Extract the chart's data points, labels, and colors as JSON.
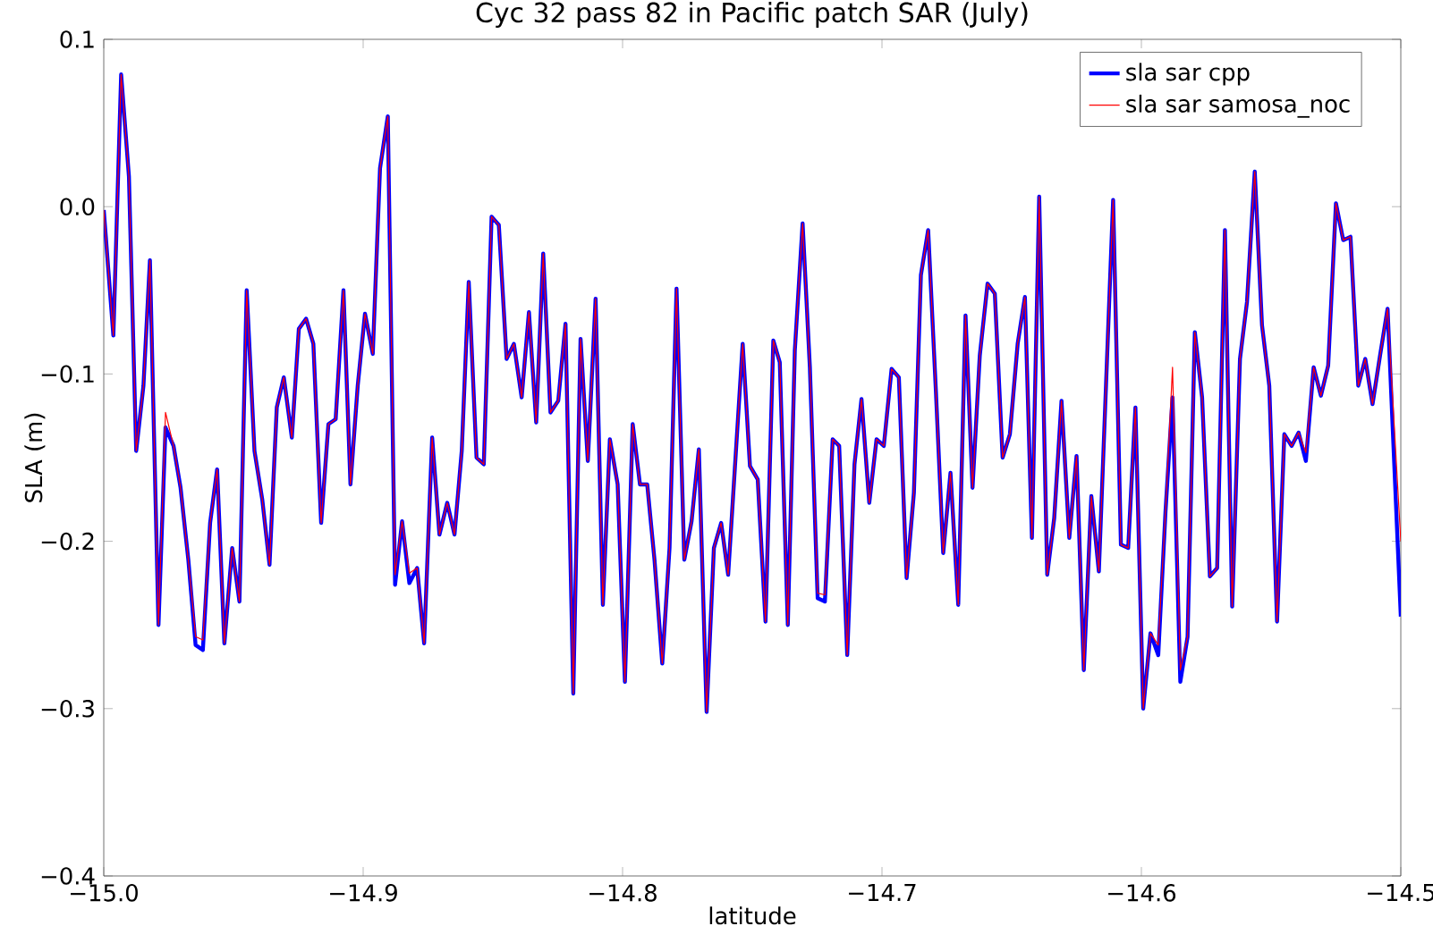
{
  "chart_data": {
    "type": "line",
    "title": "Cyc 32 pass 82 in Pacific patch SAR (July)",
    "xlabel": "latitude",
    "ylabel": "SLA (m)",
    "x": [
      -15.0,
      -14.9963,
      -14.9933,
      -14.9903,
      -14.9875,
      -14.9847,
      -14.9822,
      -14.9789,
      -14.9762,
      -14.9731,
      -14.9704,
      -14.9674,
      -14.9646,
      -14.9618,
      -14.959,
      -14.9563,
      -14.9535,
      -14.9505,
      -14.9477,
      -14.9449,
      -14.9419,
      -14.9389,
      -14.9361,
      -14.9333,
      -14.9306,
      -14.9275,
      -14.9248,
      -14.922,
      -14.9192,
      -14.9162,
      -14.9134,
      -14.9106,
      -14.9076,
      -14.9049,
      -14.9021,
      -14.8993,
      -14.8963,
      -14.8935,
      -14.8905,
      -14.8877,
      -14.885,
      -14.8822,
      -14.8792,
      -14.8765,
      -14.8734,
      -14.8706,
      -14.8676,
      -14.8648,
      -14.862,
      -14.8593,
      -14.8563,
      -14.8535,
      -14.8505,
      -14.8477,
      -14.8447,
      -14.8419,
      -14.8389,
      -14.8361,
      -14.8333,
      -14.8306,
      -14.8278,
      -14.8248,
      -14.822,
      -14.819,
      -14.8162,
      -14.8134,
      -14.8104,
      -14.8076,
      -14.8049,
      -14.8019,
      -14.7991,
      -14.7961,
      -14.7933,
      -14.7905,
      -14.7877,
      -14.7847,
      -14.7819,
      -14.7792,
      -14.7762,
      -14.7734,
      -14.7706,
      -14.7676,
      -14.7648,
      -14.762,
      -14.7593,
      -14.7537,
      -14.7509,
      -14.7479,
      -14.7449,
      -14.7419,
      -14.7394,
      -14.7363,
      -14.7336,
      -14.7306,
      -14.7278,
      -14.7248,
      -14.722,
      -14.719,
      -14.7165,
      -14.7134,
      -14.7106,
      -14.7079,
      -14.7049,
      -14.7021,
      -14.6993,
      -14.6963,
      -14.6935,
      -14.6905,
      -14.6877,
      -14.685,
      -14.6822,
      -14.6792,
      -14.6764,
      -14.6736,
      -14.6706,
      -14.6678,
      -14.6651,
      -14.6623,
      -14.6593,
      -14.6565,
      -14.6535,
      -14.6507,
      -14.6477,
      -14.6449,
      -14.6422,
      -14.6394,
      -14.6363,
      -14.6336,
      -14.6308,
      -14.6278,
      -14.625,
      -14.6222,
      -14.6193,
      -14.6164,
      -14.6109,
      -14.6079,
      -14.6051,
      -14.6023,
      -14.5993,
      -14.5965,
      -14.5935,
      -14.5907,
      -14.588,
      -14.585,
      -14.5822,
      -14.5794,
      -14.5766,
      -14.5736,
      -14.5708,
      -14.5678,
      -14.565,
      -14.562,
      -14.5593,
      -14.5563,
      -14.5535,
      -14.5507,
      -14.5477,
      -14.5449,
      -14.5421,
      -14.5394,
      -14.5366,
      -14.5336,
      -14.5308,
      -14.528,
      -14.525,
      -14.5222,
      -14.5194,
      -14.5164,
      -14.5137,
      -14.5109,
      -14.5079,
      -14.5051,
      -14.5
    ],
    "series": [
      {
        "name": "sla sar cpp",
        "color": "#0000ff",
        "values": [
          -0.002,
          -0.077,
          0.079,
          0.018,
          -0.146,
          -0.107,
          -0.032,
          -0.25,
          -0.132,
          -0.143,
          -0.168,
          -0.211,
          -0.262,
          -0.265,
          -0.189,
          -0.157,
          -0.261,
          -0.204,
          -0.236,
          -0.05,
          -0.146,
          -0.175,
          -0.214,
          -0.12,
          -0.102,
          -0.138,
          -0.073,
          -0.067,
          -0.082,
          -0.189,
          -0.13,
          -0.127,
          -0.05,
          -0.166,
          -0.107,
          -0.064,
          -0.088,
          0.023,
          0.054,
          -0.226,
          -0.188,
          -0.225,
          -0.216,
          -0.261,
          -0.138,
          -0.196,
          -0.177,
          -0.196,
          -0.146,
          -0.045,
          -0.15,
          -0.154,
          -0.006,
          -0.011,
          -0.091,
          -0.082,
          -0.114,
          -0.063,
          -0.129,
          -0.028,
          -0.123,
          -0.116,
          -0.07,
          -0.291,
          -0.079,
          -0.152,
          -0.055,
          -0.238,
          -0.139,
          -0.166,
          -0.284,
          -0.13,
          -0.166,
          -0.166,
          -0.211,
          -0.273,
          -0.204,
          -0.049,
          -0.211,
          -0.188,
          -0.145,
          -0.302,
          -0.204,
          -0.189,
          -0.22,
          -0.082,
          -0.155,
          -0.163,
          -0.248,
          -0.08,
          -0.093,
          -0.25,
          -0.086,
          -0.01,
          -0.096,
          -0.234,
          -0.236,
          -0.139,
          -0.143,
          -0.268,
          -0.154,
          -0.115,
          -0.177,
          -0.139,
          -0.143,
          -0.097,
          -0.102,
          -0.222,
          -0.171,
          -0.041,
          -0.014,
          -0.111,
          -0.207,
          -0.159,
          -0.238,
          -0.065,
          -0.168,
          -0.089,
          -0.046,
          -0.052,
          -0.15,
          -0.136,
          -0.082,
          -0.054,
          -0.198,
          0.006,
          -0.22,
          -0.186,
          -0.116,
          -0.198,
          -0.149,
          -0.277,
          -0.173,
          -0.218,
          0.004,
          -0.202,
          -0.204,
          -0.12,
          -0.3,
          -0.255,
          -0.268,
          -0.182,
          -0.114,
          -0.284,
          -0.257,
          -0.075,
          -0.114,
          -0.221,
          -0.216,
          -0.014,
          -0.239,
          -0.091,
          -0.057,
          0.021,
          -0.071,
          -0.107,
          -0.248,
          -0.136,
          -0.143,
          -0.135,
          -0.152,
          -0.096,
          -0.113,
          -0.095,
          0.002,
          -0.02,
          -0.018,
          -0.107,
          -0.091,
          -0.118,
          -0.088,
          -0.061,
          -0.245
        ]
      },
      {
        "name": "sla sar samosa_noc",
        "color": "#ff0000",
        "values": [
          -0.002,
          -0.077,
          0.079,
          0.018,
          -0.146,
          -0.107,
          -0.032,
          -0.25,
          -0.123,
          -0.143,
          -0.168,
          -0.211,
          -0.257,
          -0.259,
          -0.189,
          -0.157,
          -0.261,
          -0.204,
          -0.236,
          -0.05,
          -0.146,
          -0.175,
          -0.214,
          -0.12,
          -0.102,
          -0.138,
          -0.073,
          -0.067,
          -0.082,
          -0.189,
          -0.13,
          -0.127,
          -0.05,
          -0.166,
          -0.107,
          -0.064,
          -0.088,
          0.023,
          0.054,
          -0.22,
          -0.188,
          -0.219,
          -0.216,
          -0.261,
          -0.138,
          -0.196,
          -0.177,
          -0.196,
          -0.146,
          -0.045,
          -0.15,
          -0.154,
          -0.006,
          -0.011,
          -0.091,
          -0.082,
          -0.114,
          -0.063,
          -0.129,
          -0.028,
          -0.123,
          -0.116,
          -0.07,
          -0.291,
          -0.079,
          -0.152,
          -0.055,
          -0.238,
          -0.139,
          -0.166,
          -0.284,
          -0.13,
          -0.166,
          -0.166,
          -0.211,
          -0.273,
          -0.204,
          -0.049,
          -0.211,
          -0.188,
          -0.145,
          -0.302,
          -0.204,
          -0.189,
          -0.22,
          -0.082,
          -0.155,
          -0.163,
          -0.248,
          -0.08,
          -0.093,
          -0.25,
          -0.086,
          -0.01,
          -0.096,
          -0.231,
          -0.232,
          -0.139,
          -0.143,
          -0.268,
          -0.154,
          -0.115,
          -0.177,
          -0.139,
          -0.143,
          -0.097,
          -0.102,
          -0.222,
          -0.171,
          -0.041,
          -0.014,
          -0.111,
          -0.207,
          -0.159,
          -0.238,
          -0.065,
          -0.168,
          -0.089,
          -0.046,
          -0.052,
          -0.15,
          -0.136,
          -0.082,
          -0.054,
          -0.198,
          0.006,
          -0.22,
          -0.186,
          -0.116,
          -0.198,
          -0.149,
          -0.277,
          -0.173,
          -0.218,
          0.004,
          -0.202,
          -0.204,
          -0.12,
          -0.3,
          -0.255,
          -0.262,
          -0.182,
          -0.096,
          -0.277,
          -0.257,
          -0.075,
          -0.114,
          -0.221,
          -0.216,
          -0.014,
          -0.239,
          -0.091,
          -0.057,
          0.021,
          -0.071,
          -0.107,
          -0.248,
          -0.136,
          -0.143,
          -0.135,
          -0.147,
          -0.096,
          -0.113,
          -0.095,
          0.002,
          -0.02,
          -0.018,
          -0.107,
          -0.091,
          -0.118,
          -0.088,
          -0.061,
          -0.2
        ]
      }
    ],
    "xlim": [
      -15.0,
      -14.5
    ],
    "xticks": [
      {
        "value": -15.0,
        "label": "−15.0"
      },
      {
        "value": -14.9,
        "label": "−14.9"
      },
      {
        "value": -14.8,
        "label": "−14.8"
      },
      {
        "value": -14.7,
        "label": "−14.7"
      },
      {
        "value": -14.6,
        "label": "−14.6"
      },
      {
        "value": -14.5,
        "label": "−14.5"
      }
    ],
    "ylim": [
      -0.4,
      0.1
    ],
    "yticks": [
      {
        "value": -0.4,
        "label": "−0.4"
      },
      {
        "value": -0.3,
        "label": "−0.3"
      },
      {
        "value": -0.2,
        "label": "−0.2"
      },
      {
        "value": -0.1,
        "label": "−0.1"
      },
      {
        "value": 0.0,
        "label": "0.0"
      },
      {
        "value": 0.1,
        "label": "0.1"
      }
    ],
    "legend": "top right",
    "marker": "none",
    "line_style": "solid"
  }
}
